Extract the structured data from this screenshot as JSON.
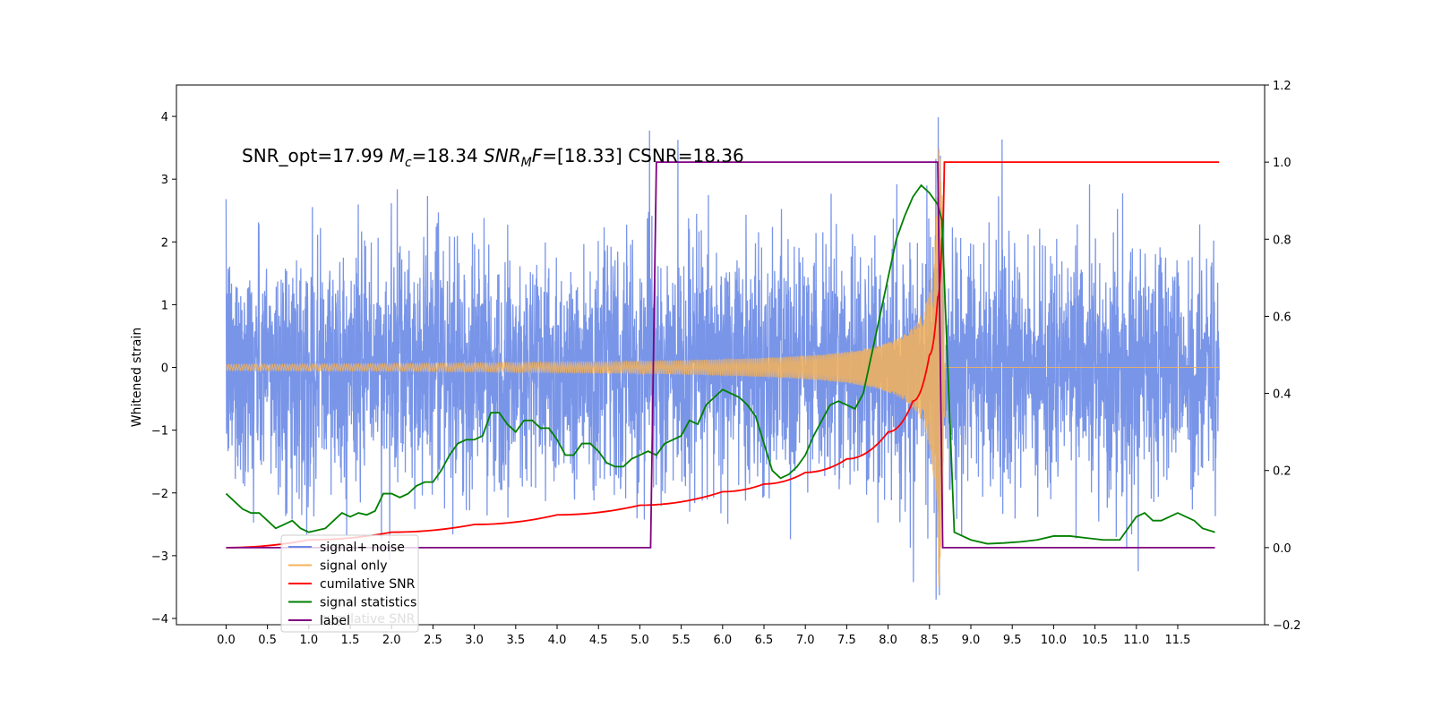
{
  "chart_data": {
    "type": "line",
    "title": "",
    "xlabel": "",
    "ylabel": "Whitened strain",
    "xlim": [
      -0.6,
      12.55
    ],
    "ylim": [
      -4.1,
      4.5
    ],
    "y2lim": [
      -0.2,
      1.2
    ],
    "x_ticks": [
      0.0,
      0.5,
      1.0,
      1.5,
      2.0,
      2.5,
      3.0,
      3.5,
      4.0,
      4.5,
      5.0,
      5.5,
      6.0,
      6.5,
      7.0,
      7.5,
      8.0,
      8.5,
      9.0,
      9.5,
      10.0,
      10.5,
      11.0,
      11.5
    ],
    "x_tick_labels": [
      "0.0",
      "0.5",
      "1.0",
      "1.5",
      "2.0",
      "2.5",
      "3.0",
      "3.5",
      "4.0",
      "4.5",
      "5.0",
      "5.5",
      "6.0",
      "6.5",
      "7.0",
      "7.5",
      "8.0",
      "8.5",
      "9.0",
      "9.5",
      "10.0",
      "10.5",
      "11.0",
      "11.5"
    ],
    "y_ticks": [
      -4,
      -3,
      -2,
      -1,
      0,
      1,
      2,
      3,
      4
    ],
    "y_tick_labels": [
      "−4",
      "−3",
      "−2",
      "−1",
      "0",
      "1",
      "2",
      "3",
      "4"
    ],
    "y2_ticks": [
      -0.2,
      0.0,
      0.2,
      0.4,
      0.6,
      0.8,
      1.0,
      1.2
    ],
    "y2_tick_labels": [
      "−0.2",
      "0.0",
      "0.2",
      "0.4",
      "0.6",
      "0.8",
      "1.0",
      "1.2"
    ],
    "grid": false,
    "legend_position": "bottom-left",
    "annotation": {
      "prefix": "SNR_opt=17.99 ",
      "mc_symbol": "M",
      "mc_sub": "c",
      "mc_value": "=18.34  ",
      "snr_symbol": "SNR",
      "snr_sub": "M",
      "snr_f": "F",
      "snr_value": "=[18.33] CSNR=18.36"
    },
    "series": [
      {
        "name": "signal+ noise",
        "color": "#6a8ae6",
        "axis": "left",
        "description_noise": {
          "x_start": 0.0,
          "x_end": 12.0,
          "std": 0.95,
          "merger_x": 8.66
        }
      },
      {
        "name": "signal only",
        "color": "#f5b35a",
        "axis": "left",
        "chirp": {
          "x_start": 0.0,
          "x_merger": 8.65,
          "x_end": 12.0,
          "peak_amplitude": 3.5
        }
      },
      {
        "name": "cumilative SNR",
        "color": "#ff0000",
        "axis": "right",
        "x": [
          0.0,
          1.0,
          2.0,
          3.0,
          4.0,
          5.0,
          6.0,
          6.5,
          7.0,
          7.5,
          8.0,
          8.3,
          8.5,
          8.6,
          8.65,
          8.68,
          12.0
        ],
        "y": [
          0.0,
          0.02,
          0.04,
          0.06,
          0.085,
          0.11,
          0.145,
          0.165,
          0.195,
          0.23,
          0.3,
          0.38,
          0.5,
          0.65,
          0.8,
          1.0,
          1.0
        ]
      },
      {
        "name": "signal statistics",
        "color": "#008000",
        "axis": "right",
        "x": [
          0.0,
          0.1,
          0.2,
          0.3,
          0.4,
          0.5,
          0.6,
          0.7,
          0.8,
          0.9,
          1.0,
          1.1,
          1.2,
          1.3,
          1.4,
          1.5,
          1.6,
          1.7,
          1.8,
          1.9,
          2.0,
          2.1,
          2.2,
          2.3,
          2.4,
          2.5,
          2.6,
          2.7,
          2.8,
          2.9,
          3.0,
          3.1,
          3.2,
          3.3,
          3.4,
          3.5,
          3.6,
          3.7,
          3.8,
          3.9,
          4.0,
          4.1,
          4.2,
          4.3,
          4.4,
          4.5,
          4.6,
          4.7,
          4.8,
          4.9,
          5.0,
          5.1,
          5.2,
          5.3,
          5.4,
          5.5,
          5.6,
          5.7,
          5.8,
          5.9,
          6.0,
          6.1,
          6.2,
          6.3,
          6.4,
          6.5,
          6.6,
          6.7,
          6.8,
          6.9,
          7.0,
          7.1,
          7.2,
          7.3,
          7.4,
          7.5,
          7.6,
          7.7,
          7.8,
          7.9,
          8.0,
          8.1,
          8.2,
          8.3,
          8.4,
          8.5,
          8.6,
          8.65,
          8.8,
          9.0,
          9.2,
          9.4,
          9.6,
          9.8,
          10.0,
          10.2,
          10.4,
          10.6,
          10.8,
          11.0,
          11.1,
          11.2,
          11.3,
          11.4,
          11.5,
          11.6,
          11.7,
          11.8,
          11.95
        ],
        "y": [
          0.14,
          0.12,
          0.1,
          0.09,
          0.09,
          0.07,
          0.05,
          0.06,
          0.07,
          0.05,
          0.04,
          0.045,
          0.05,
          0.07,
          0.09,
          0.08,
          0.09,
          0.085,
          0.095,
          0.14,
          0.14,
          0.13,
          0.14,
          0.16,
          0.17,
          0.17,
          0.2,
          0.24,
          0.27,
          0.28,
          0.28,
          0.29,
          0.35,
          0.35,
          0.32,
          0.3,
          0.33,
          0.33,
          0.31,
          0.31,
          0.28,
          0.24,
          0.24,
          0.27,
          0.27,
          0.25,
          0.22,
          0.21,
          0.21,
          0.23,
          0.24,
          0.25,
          0.24,
          0.27,
          0.28,
          0.29,
          0.33,
          0.32,
          0.37,
          0.39,
          0.41,
          0.4,
          0.39,
          0.37,
          0.34,
          0.27,
          0.2,
          0.18,
          0.19,
          0.21,
          0.24,
          0.29,
          0.33,
          0.37,
          0.38,
          0.37,
          0.36,
          0.4,
          0.5,
          0.6,
          0.7,
          0.8,
          0.86,
          0.91,
          0.94,
          0.92,
          0.89,
          0.85,
          0.04,
          0.02,
          0.01,
          0.012,
          0.015,
          0.02,
          0.03,
          0.03,
          0.025,
          0.02,
          0.02,
          0.08,
          0.09,
          0.07,
          0.07,
          0.08,
          0.09,
          0.08,
          0.07,
          0.05,
          0.04
        ]
      },
      {
        "name": "label",
        "color": "#800080",
        "axis": "right",
        "x": [
          0.0,
          5.13,
          5.2,
          8.6,
          8.66,
          11.95
        ],
        "y": [
          0.0,
          0.0,
          1.0,
          1.0,
          0.0,
          0.0
        ]
      }
    ],
    "legend": {
      "entries": [
        "signal+ noise",
        "signal only",
        "cumilative SNR",
        "signal statistics",
        "label"
      ],
      "ghost_text": "cumilative SNR"
    }
  }
}
